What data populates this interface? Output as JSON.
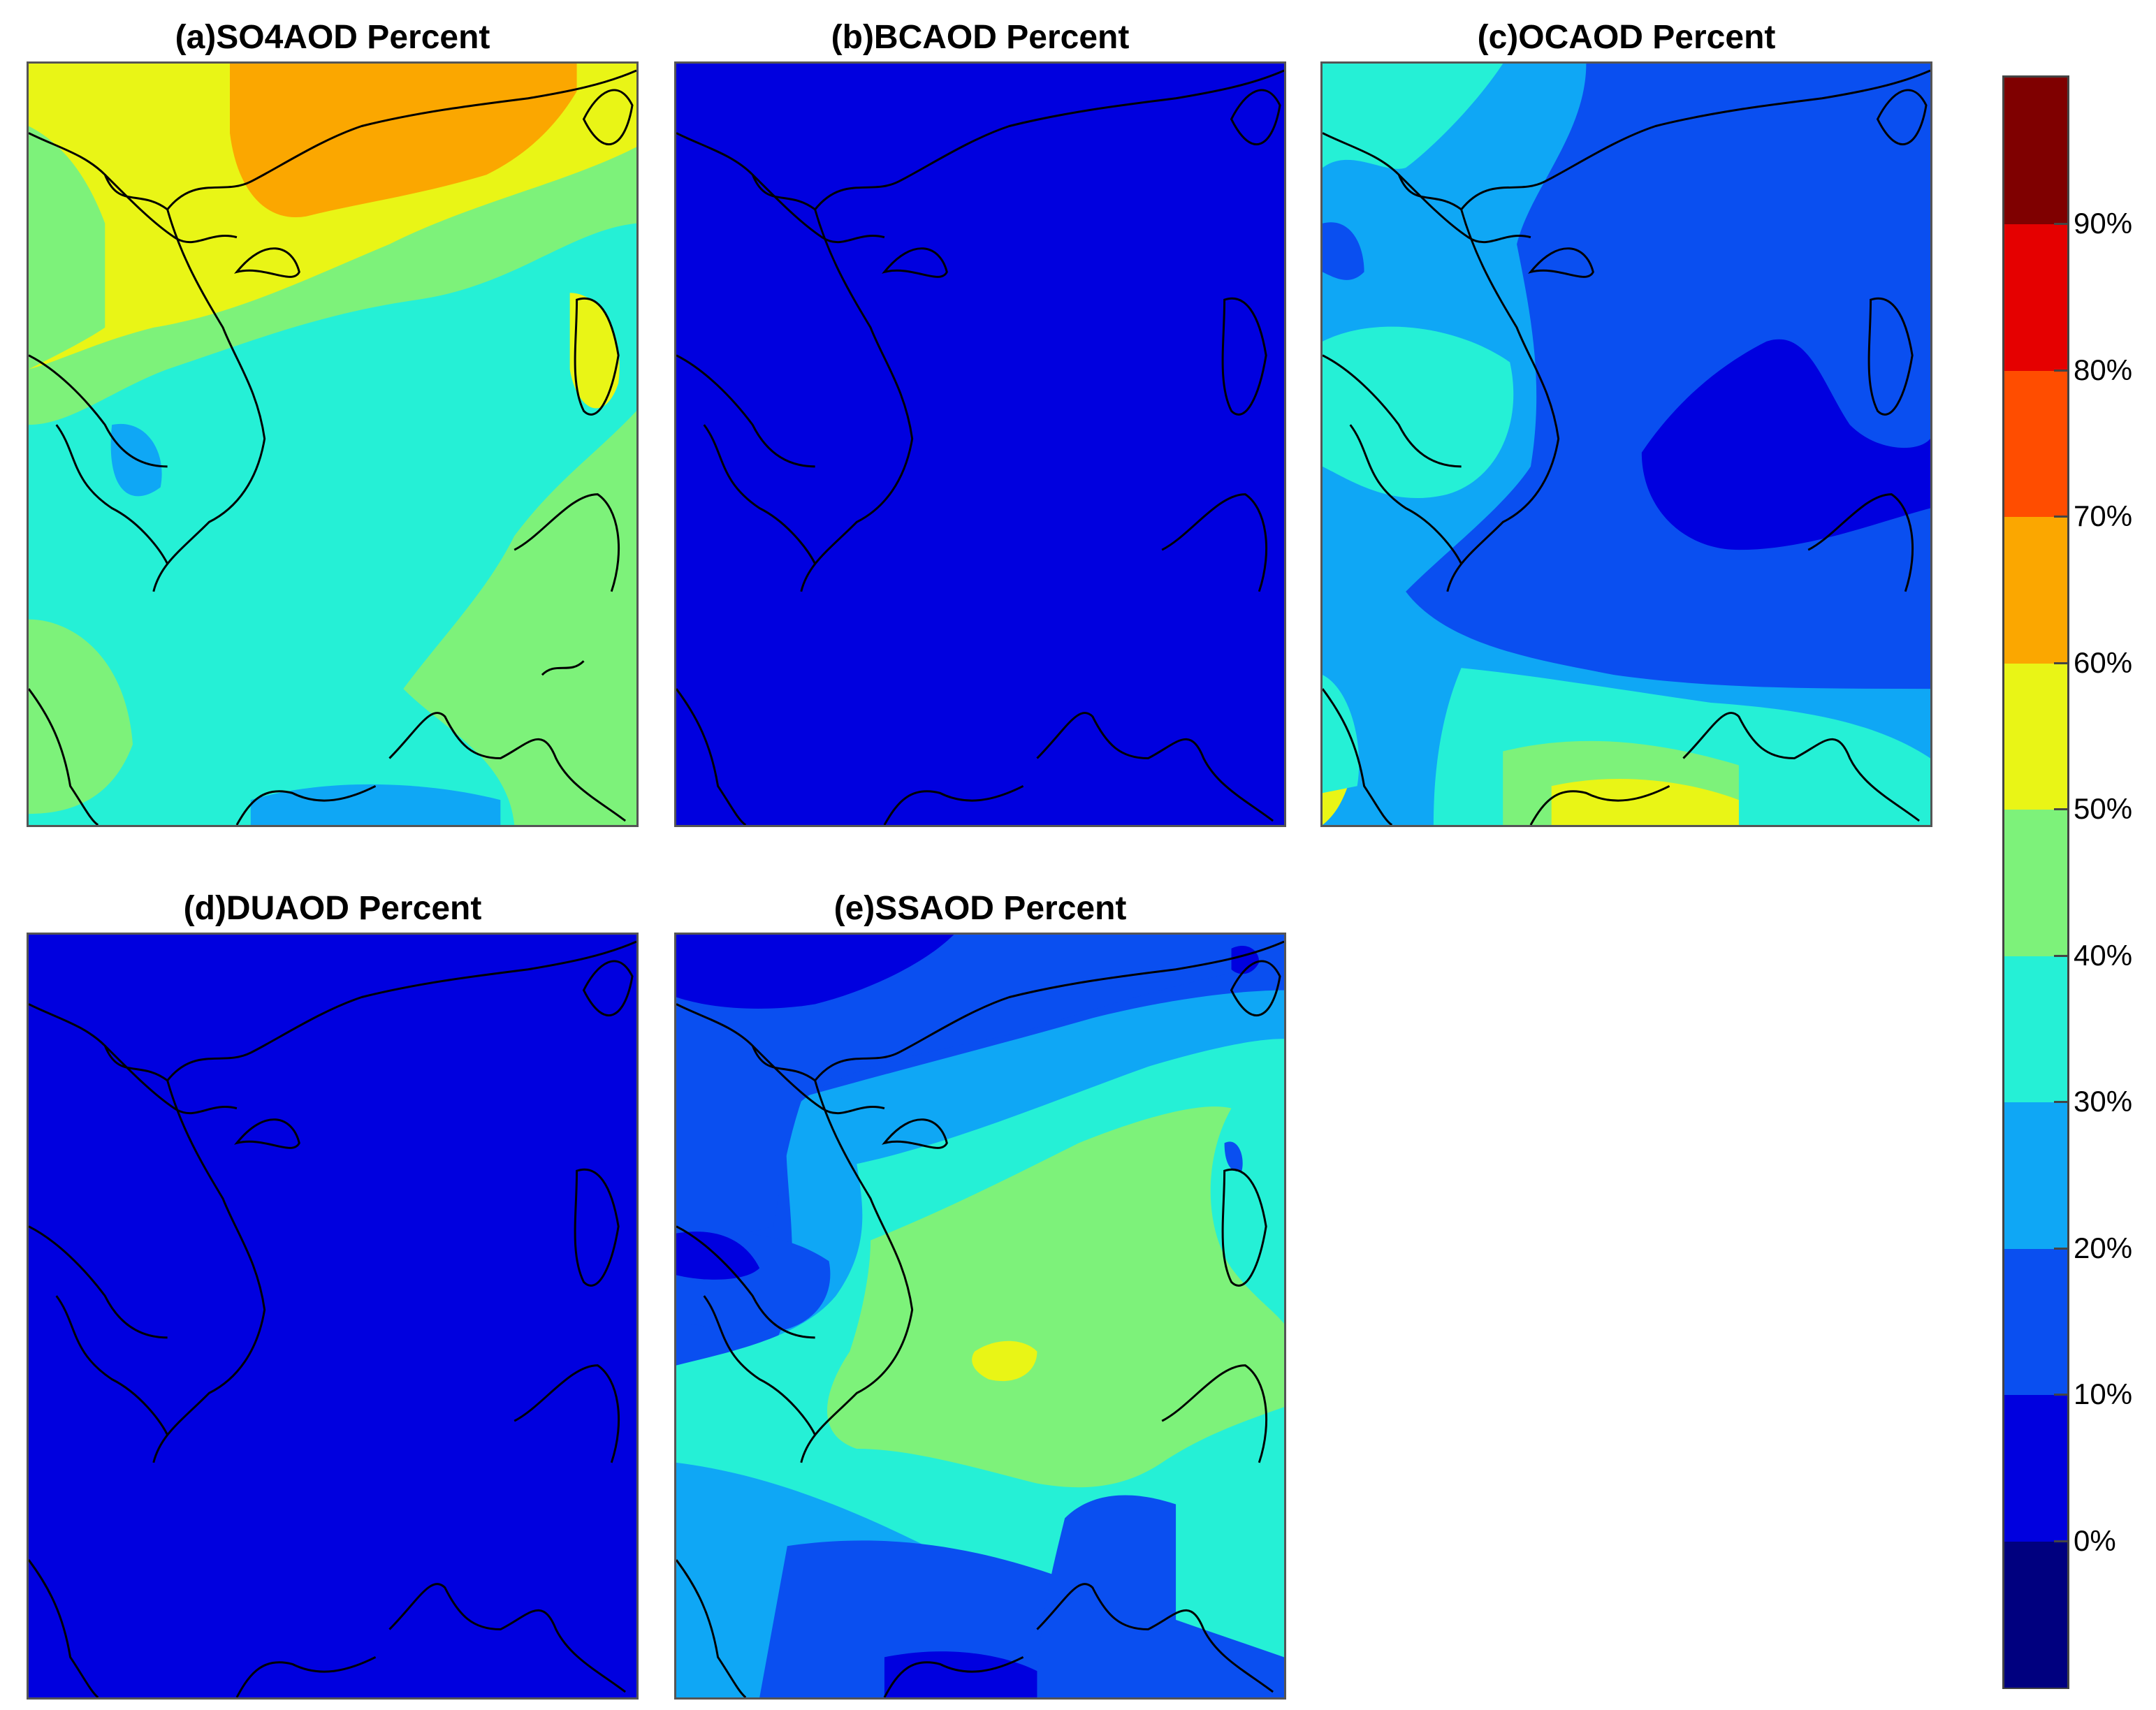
{
  "colorbar": {
    "levels": [
      {
        "color": "#00007f"
      },
      {
        "color": "#0000df"
      },
      {
        "color": "#0a4ff0"
      },
      {
        "color": "#0fa7f5"
      },
      {
        "color": "#25f0d6"
      },
      {
        "color": "#7df27a"
      },
      {
        "color": "#e9f516"
      },
      {
        "color": "#fba700"
      },
      {
        "color": "#ff4d00"
      },
      {
        "color": "#e50000"
      },
      {
        "color": "#7f0000"
      }
    ],
    "tick_labels": [
      "0%",
      "10%",
      "20%",
      "30%",
      "40%",
      "50%",
      "60%",
      "70%",
      "80%",
      "90%"
    ]
  },
  "panels": [
    {
      "id": "a",
      "title": "(a)SO4AOD Percent"
    },
    {
      "id": "b",
      "title": "(b)BCAOD Percent"
    },
    {
      "id": "c",
      "title": "(c)OCAOD Percent"
    },
    {
      "id": "d",
      "title": "(d)DUAOD Percent"
    },
    {
      "id": "e",
      "title": "(e)SSAOD Percent"
    }
  ],
  "colors": {
    "coastline": "#000000",
    "frame": "#555555"
  }
}
